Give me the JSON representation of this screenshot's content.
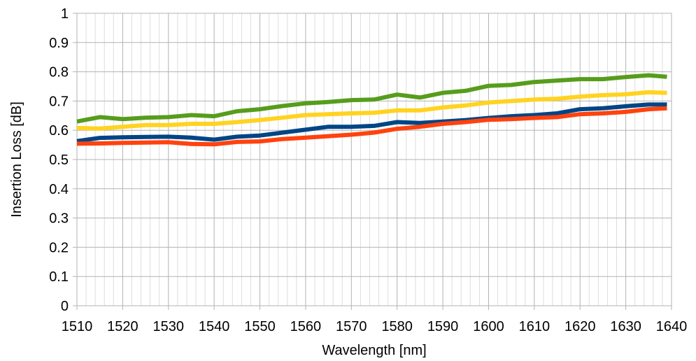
{
  "chart_data": {
    "type": "line",
    "title": "",
    "xlabel": "Wavelength [nm]",
    "ylabel": "Insertion Loss [dB]",
    "xlim": [
      1510,
      1640
    ],
    "ylim": [
      0,
      1
    ],
    "x_ticks": [
      "1510",
      "1520",
      "1530",
      "1540",
      "1550",
      "1560",
      "1570",
      "1580",
      "1590",
      "1600",
      "1610",
      "1620",
      "1630",
      "1640"
    ],
    "y_ticks": [
      "0",
      "0.1",
      "0.2",
      "0.3",
      "0.4",
      "0.5",
      "0.6",
      "0.7",
      "0.8",
      "0.9",
      "1"
    ],
    "grid": true,
    "legend": "none",
    "x": [
      1510,
      1515,
      1520,
      1525,
      1530,
      1535,
      1540,
      1545,
      1550,
      1555,
      1560,
      1565,
      1570,
      1575,
      1580,
      1585,
      1590,
      1595,
      1600,
      1605,
      1610,
      1615,
      1620,
      1625,
      1630,
      1635,
      1639
    ],
    "series": [
      {
        "color": "#579D1C",
        "values": [
          0.63,
          0.645,
          0.638,
          0.643,
          0.645,
          0.652,
          0.648,
          0.665,
          0.672,
          0.683,
          0.692,
          0.697,
          0.703,
          0.705,
          0.722,
          0.712,
          0.728,
          0.735,
          0.752,
          0.755,
          0.765,
          0.77,
          0.775,
          0.775,
          0.782,
          0.788,
          0.783
        ]
      },
      {
        "color": "#FFD320",
        "values": [
          0.608,
          0.606,
          0.612,
          0.618,
          0.618,
          0.622,
          0.622,
          0.628,
          0.635,
          0.643,
          0.652,
          0.655,
          0.658,
          0.66,
          0.668,
          0.668,
          0.678,
          0.685,
          0.695,
          0.7,
          0.705,
          0.708,
          0.715,
          0.72,
          0.723,
          0.73,
          0.728
        ]
      },
      {
        "color": "#004586",
        "values": [
          0.563,
          0.574,
          0.576,
          0.577,
          0.578,
          0.575,
          0.568,
          0.578,
          0.582,
          0.592,
          0.602,
          0.612,
          0.612,
          0.615,
          0.628,
          0.625,
          0.63,
          0.635,
          0.642,
          0.648,
          0.652,
          0.658,
          0.672,
          0.675,
          0.682,
          0.688,
          0.688
        ]
      },
      {
        "color": "#FF420E",
        "values": [
          0.554,
          0.555,
          0.557,
          0.558,
          0.559,
          0.553,
          0.552,
          0.56,
          0.562,
          0.57,
          0.575,
          0.58,
          0.585,
          0.592,
          0.605,
          0.612,
          0.622,
          0.628,
          0.636,
          0.638,
          0.642,
          0.645,
          0.655,
          0.658,
          0.663,
          0.672,
          0.675
        ]
      }
    ]
  }
}
